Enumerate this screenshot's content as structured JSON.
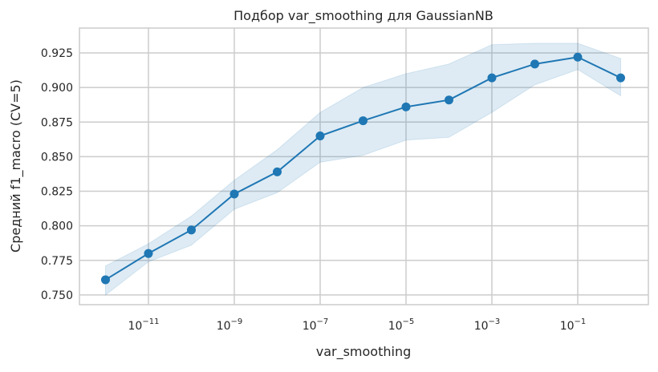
{
  "chart_data": {
    "type": "line",
    "title": "Подбор var_smoothing для GaussianNB",
    "xlabel": "var_smoothing",
    "ylabel": "Средний f1_macro (CV=5)",
    "xscale": "log",
    "x": [
      1e-12,
      1e-11,
      1e-10,
      1e-09,
      1e-08,
      1e-07,
      1e-06,
      1e-05,
      0.0001,
      0.001,
      0.01,
      0.1,
      1
    ],
    "series": [
      {
        "values": [
          0.761,
          0.78,
          0.797,
          0.823,
          0.839,
          0.865,
          0.876,
          0.886,
          0.891,
          0.907,
          0.917,
          0.922,
          0.907
        ],
        "upper": [
          0.771,
          0.787,
          0.807,
          0.833,
          0.855,
          0.882,
          0.9,
          0.91,
          0.917,
          0.931,
          0.932,
          0.932,
          0.921
        ],
        "lower": [
          0.75,
          0.774,
          0.786,
          0.812,
          0.824,
          0.846,
          0.851,
          0.862,
          0.864,
          0.882,
          0.902,
          0.913,
          0.894
        ]
      }
    ],
    "xticks": [
      {
        "exp": -11,
        "label": "10",
        "sup": "−11"
      },
      {
        "exp": -9,
        "label": "10",
        "sup": "−9"
      },
      {
        "exp": -7,
        "label": "10",
        "sup": "−7"
      },
      {
        "exp": -5,
        "label": "10",
        "sup": "−5"
      },
      {
        "exp": -3,
        "label": "10",
        "sup": "−3"
      },
      {
        "exp": -1,
        "label": "10",
        "sup": "−1"
      }
    ],
    "yticks": [
      "0.750",
      "0.775",
      "0.800",
      "0.825",
      "0.850",
      "0.875",
      "0.900",
      "0.925"
    ],
    "xlim_log10": [
      -12.607,
      0.645
    ],
    "ylim": [
      0.743,
      0.943
    ],
    "grid": true,
    "colors": {
      "line": "#1f77b4",
      "band": "#1f77b4",
      "grid": "#cccccc",
      "axes": "#cccccc"
    }
  }
}
